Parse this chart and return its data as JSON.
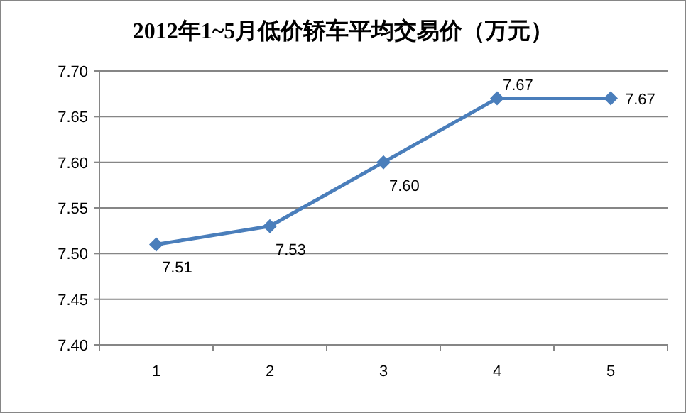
{
  "chart_data": {
    "type": "line",
    "title": "2012年1~5月低价轿车平均交易价（万元）",
    "categories": [
      "1",
      "2",
      "3",
      "4",
      "5"
    ],
    "series": [
      {
        "color": "#4a7ebb",
        "values": [
          7.51,
          7.53,
          7.6,
          7.67,
          7.67
        ],
        "value_labels": [
          "7.51",
          "7.53",
          "7.60",
          "7.67",
          "7.67"
        ]
      }
    ],
    "ylim": [
      7.4,
      7.7
    ],
    "yticks": [
      {
        "value": 7.4,
        "label": "7.40"
      },
      {
        "value": 7.45,
        "label": "7.45"
      },
      {
        "value": 7.5,
        "label": "7.50"
      },
      {
        "value": 7.55,
        "label": "7.55"
      },
      {
        "value": 7.6,
        "label": "7.60"
      },
      {
        "value": 7.65,
        "label": "7.65"
      },
      {
        "value": 7.7,
        "label": "7.70"
      }
    ],
    "grid": "y",
    "marker": "diamond",
    "line_style": "solid"
  }
}
